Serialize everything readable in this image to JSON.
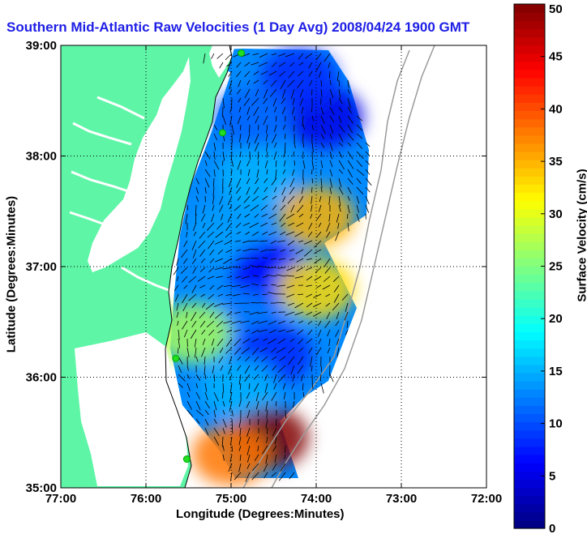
{
  "chart_data": {
    "type": "heatmap",
    "title": "Southern Mid-Atlantic Raw Velocities (1 Day Avg) 2008/04/24 1900 GMT",
    "xlabel": "Longitude (Degrees:Minutes)",
    "ylabel": "Latitude (Degrees:Minutes)",
    "colorbar_label": "Surface Velocity (cm/s)",
    "xlim": [
      -77,
      -72
    ],
    "ylim": [
      35,
      39
    ],
    "x_ticks": [
      {
        "value": -77,
        "label": "77:00"
      },
      {
        "value": -76,
        "label": "76:00"
      },
      {
        "value": -75,
        "label": "75:00"
      },
      {
        "value": -74,
        "label": "74:00"
      },
      {
        "value": -73,
        "label": "73:00"
      },
      {
        "value": -72,
        "label": "72:00"
      }
    ],
    "y_ticks": [
      {
        "value": 35,
        "label": "35:00"
      },
      {
        "value": 36,
        "label": "36:00"
      },
      {
        "value": 37,
        "label": "37:00"
      },
      {
        "value": 38,
        "label": "38:00"
      },
      {
        "value": 39,
        "label": "39:00"
      }
    ],
    "colorbar": {
      "range": [
        0,
        50
      ],
      "ticks": [
        0,
        5,
        10,
        15,
        20,
        25,
        30,
        35,
        40,
        45,
        50
      ],
      "colormap": "jet"
    },
    "grid": true,
    "land_color": "#5ef5a6",
    "station_color": "#22dd22",
    "stations": [
      {
        "lon": -74.88,
        "lat": 38.93
      },
      {
        "lon": -75.1,
        "lat": 38.21
      },
      {
        "lon": -75.65,
        "lat": 36.17
      },
      {
        "lon": -75.52,
        "lat": 35.26
      }
    ],
    "velocity_regions": [
      {
        "lon": -73.9,
        "lat": 38.35,
        "speed": 5
      },
      {
        "lon": -74.2,
        "lat": 38.7,
        "speed": 8
      },
      {
        "lon": -74.75,
        "lat": 38.35,
        "speed": 11
      },
      {
        "lon": -74.7,
        "lat": 37.8,
        "speed": 15
      },
      {
        "lon": -75.05,
        "lat": 37.3,
        "speed": 14
      },
      {
        "lon": -74.55,
        "lat": 36.95,
        "speed": 6
      },
      {
        "lon": -74.0,
        "lat": 37.45,
        "speed": 35
      },
      {
        "lon": -74.0,
        "lat": 36.8,
        "speed": 33
      },
      {
        "lon": -74.8,
        "lat": 36.5,
        "speed": 12
      },
      {
        "lon": -74.5,
        "lat": 36.2,
        "speed": 8
      },
      {
        "lon": -75.45,
        "lat": 36.4,
        "speed": 27
      },
      {
        "lon": -74.9,
        "lat": 35.9,
        "speed": 15
      },
      {
        "lon": -74.55,
        "lat": 35.45,
        "speed": 50
      },
      {
        "lon": -75.0,
        "lat": 35.3,
        "speed": 38
      }
    ]
  }
}
